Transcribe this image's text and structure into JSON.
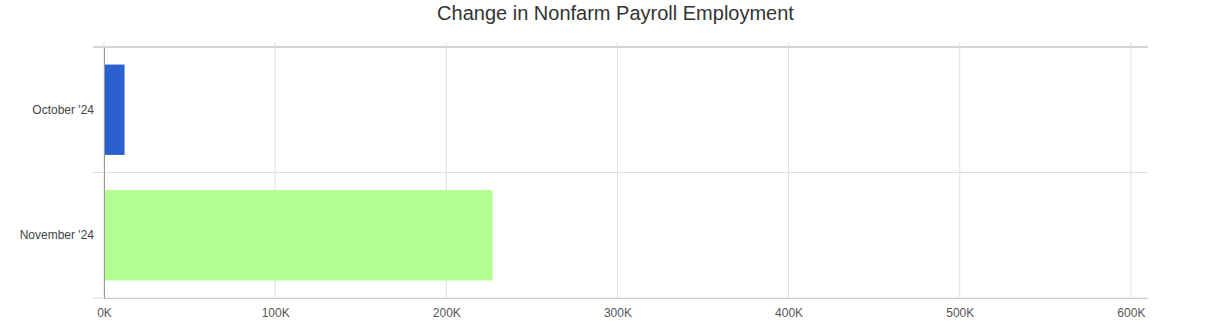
{
  "chart_data": {
    "type": "bar",
    "orientation": "horizontal",
    "title": "Change in Nonfarm Payroll Employment",
    "categories": [
      "October '24",
      "November '24"
    ],
    "values": [
      12000,
      227000
    ],
    "colors": [
      "#2b60cf",
      "#b3ff8f"
    ],
    "xlim": [
      0,
      610000
    ],
    "xticks": [
      {
        "value": 0,
        "label": "0K"
      },
      {
        "value": 100000,
        "label": "100K"
      },
      {
        "value": 200000,
        "label": "200K"
      },
      {
        "value": 300000,
        "label": "300K"
      },
      {
        "value": 400000,
        "label": "400K"
      },
      {
        "value": 500000,
        "label": "500K"
      },
      {
        "value": 600000,
        "label": "600K"
      }
    ],
    "grid": true
  }
}
